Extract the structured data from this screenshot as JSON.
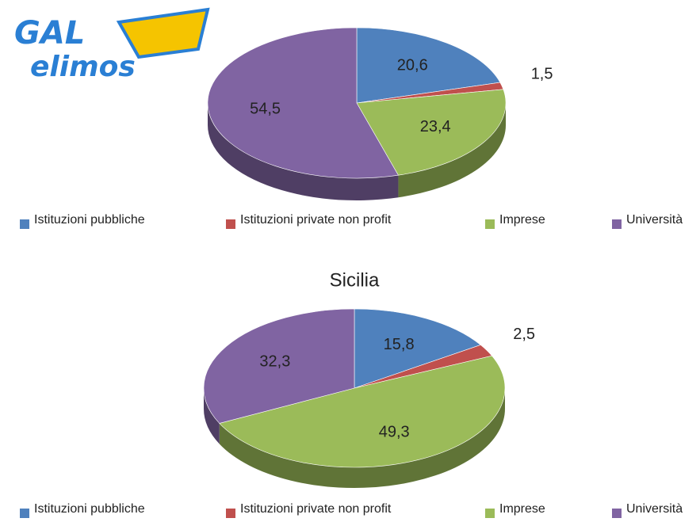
{
  "logo": {
    "line1": "GAL",
    "line2": "elimos"
  },
  "chart_data": [
    {
      "type": "pie",
      "categories": [
        "Istituzioni pubbliche",
        "Istituzioni private non profit",
        "Imprese",
        "Università"
      ],
      "values": [
        20.6,
        1.5,
        23.4,
        54.5
      ],
      "value_labels": [
        "20,6",
        "1,5",
        "23,4",
        "54,5"
      ],
      "colors": [
        "#4f81bd",
        "#c0504d",
        "#9bbb59",
        "#8064a2"
      ]
    },
    {
      "type": "pie",
      "title": "Sicilia",
      "categories": [
        "Istituzioni pubbliche",
        "Istituzioni private non profit",
        "Imprese",
        "Università"
      ],
      "values": [
        15.8,
        2.5,
        49.3,
        32.3
      ],
      "value_labels": [
        "15,8",
        "2,5",
        "49,3",
        "32,3"
      ],
      "colors": [
        "#4f81bd",
        "#c0504d",
        "#9bbb59",
        "#8064a2"
      ]
    }
  ]
}
